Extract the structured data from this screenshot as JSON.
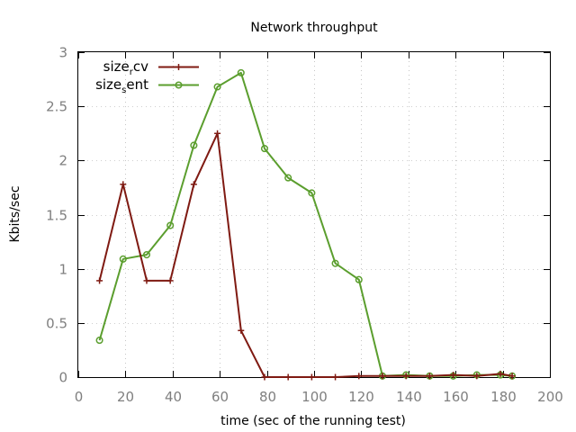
{
  "chart_data": {
    "type": "line",
    "title": "Network throughput",
    "xlabel": "time (sec of the running test)",
    "ylabel": "Kbits/sec",
    "xlim": [
      0,
      200
    ],
    "ylim": [
      0,
      3
    ],
    "xticks": [
      0,
      20,
      40,
      60,
      80,
      100,
      120,
      140,
      160,
      180,
      200
    ],
    "yticks": [
      0,
      0.5,
      1,
      1.5,
      2,
      2.5,
      3
    ],
    "xtick_labels": [
      "0",
      "20",
      "40",
      "60",
      "80",
      "100",
      "120",
      "140",
      "160",
      "180",
      "200"
    ],
    "ytick_labels": [
      "0",
      "0.5",
      "1",
      "1.5",
      "2",
      "2.5",
      "3"
    ],
    "grid": true,
    "legend_position": "top-left",
    "series": [
      {
        "name": "size_rcv",
        "label_main": "size",
        "label_sub": "r",
        "label_rest": "cv",
        "color": "#7f1a12",
        "marker": "plus",
        "x": [
          9,
          19,
          29,
          39,
          49,
          59,
          69,
          79,
          89,
          99,
          109,
          119,
          129,
          139,
          149,
          159,
          169,
          179,
          184
        ],
        "y": [
          0.89,
          1.78,
          0.89,
          0.89,
          1.78,
          2.25,
          0.43,
          0.0,
          0.0,
          0.0,
          0.0,
          0.01,
          0.01,
          0.01,
          0.01,
          0.02,
          0.01,
          0.03,
          0.01
        ]
      },
      {
        "name": "size_sent",
        "label_main": "size",
        "label_sub": "s",
        "label_rest": "ent",
        "color": "#5b9e2e",
        "marker": "circle",
        "x": [
          9,
          19,
          29,
          39,
          49,
          59,
          69,
          79,
          89,
          99,
          109,
          119,
          129,
          139,
          149,
          159,
          169,
          179,
          184
        ],
        "y": [
          0.34,
          1.09,
          1.13,
          1.4,
          2.14,
          2.68,
          2.81,
          2.11,
          1.84,
          1.7,
          1.05,
          0.9,
          0.01,
          0.02,
          0.01,
          0.01,
          0.02,
          0.02,
          0.01
        ]
      }
    ]
  }
}
